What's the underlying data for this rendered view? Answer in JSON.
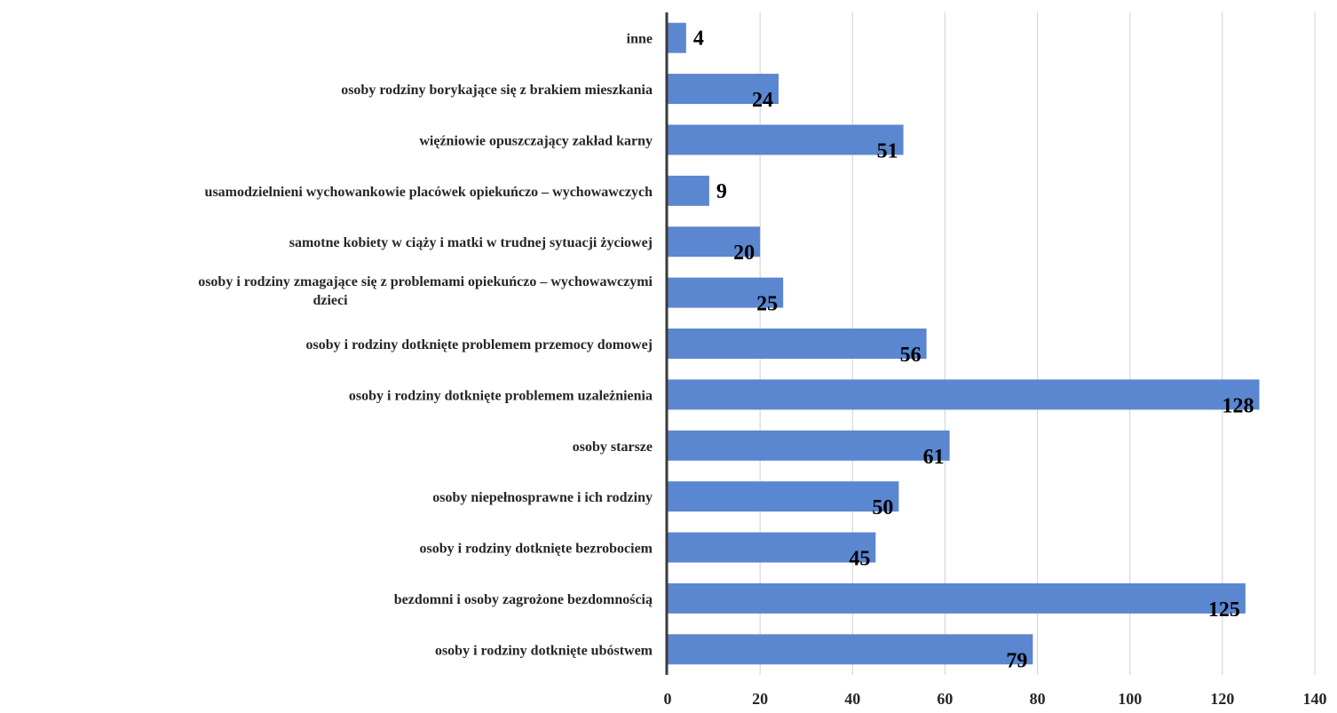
{
  "chart_data": {
    "type": "bar",
    "orientation": "horizontal",
    "categories": [
      "inne",
      "osoby rodziny borykające się z brakiem mieszkania",
      "więźniowie opuszczający zakład karny",
      "usamodzielnieni wychowankowie placówek opiekuńczo – wychowawczych",
      "samotne kobiety w ciąży i matki w trudnej sytuacji życiowej",
      "osoby i rodziny zmagające się z problemami opiekuńczo – wychowawczymi dzieci",
      "osoby i rodziny dotknięte problemem przemocy domowej",
      "osoby i rodziny dotknięte problemem uzależnienia",
      "osoby starsze",
      "osoby niepełnosprawne i ich rodziny",
      "osoby i rodziny dotknięte bezrobociem",
      "bezdomni i osoby zagrożone bezdomnością",
      "osoby i rodziny dotknięte ubóstwem"
    ],
    "category_lines": [
      [
        "inne"
      ],
      [
        "osoby rodziny borykające się z brakiem mieszkania"
      ],
      [
        "więźniowie opuszczający zakład karny"
      ],
      [
        "usamodzielnieni wychowankowie placówek opiekuńczo – wychowawczych"
      ],
      [
        "samotne kobiety w ciąży i matki w trudnej sytuacji życiowej"
      ],
      [
        "osoby i rodziny zmagające się z problemami opiekuńczo – wychowawczymi",
        "dzieci"
      ],
      [
        "osoby i rodziny dotknięte problemem przemocy domowej"
      ],
      [
        "osoby i rodziny dotknięte problemem uzależnienia"
      ],
      [
        "osoby starsze"
      ],
      [
        "osoby niepełnosprawne i ich rodziny"
      ],
      [
        "osoby i rodziny dotknięte bezrobociem"
      ],
      [
        "bezdomni i osoby zagrożone bezdomnością"
      ],
      [
        "osoby i rodziny dotknięte ubóstwem"
      ]
    ],
    "values": [
      4,
      24,
      51,
      9,
      20,
      25,
      56,
      128,
      61,
      50,
      45,
      125,
      79
    ],
    "xlim": [
      0,
      140
    ],
    "x_ticks": [
      0,
      20,
      40,
      60,
      80,
      100,
      120,
      140
    ],
    "grid": true,
    "bar_color": "#5b86d0",
    "title": "",
    "xlabel": "",
    "ylabel": ""
  }
}
